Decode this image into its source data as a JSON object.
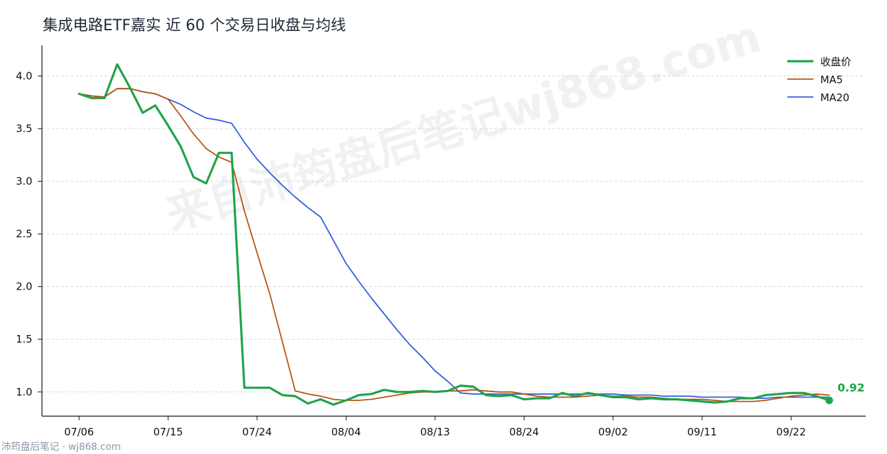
{
  "chart_data": {
    "type": "line",
    "title": "集成电路ETF嘉实 近 60 个交易日收盘与均线",
    "xlabel": "",
    "ylabel": "",
    "ylim": [
      0.77,
      4.29
    ],
    "yticks": [
      "1.0",
      "1.5",
      "2.0",
      "2.5",
      "3.0",
      "3.5",
      "4.0"
    ],
    "xticks": [
      "07/06",
      "07/15",
      "07/24",
      "08/04",
      "08/13",
      "08/24",
      "09/02",
      "09/11",
      "09/22"
    ],
    "xtick_index": [
      0,
      7,
      14,
      21,
      28,
      35,
      42,
      49,
      56
    ],
    "grid": "horizontal dashed",
    "legend": "top-right",
    "series": [
      {
        "name": "收盘价",
        "color": "#1fa34a",
        "values": [
          3.83,
          3.79,
          3.79,
          4.11,
          3.89,
          3.65,
          3.72,
          3.53,
          3.33,
          3.04,
          2.98,
          3.27,
          3.27,
          1.04,
          1.04,
          1.04,
          0.97,
          0.96,
          0.89,
          0.93,
          0.88,
          0.92,
          0.97,
          0.98,
          1.02,
          1.0,
          1.0,
          1.01,
          1.0,
          1.01,
          1.06,
          1.05,
          0.97,
          0.96,
          0.97,
          0.93,
          0.94,
          0.94,
          0.99,
          0.96,
          0.99,
          0.97,
          0.95,
          0.95,
          0.93,
          0.94,
          0.93,
          0.93,
          0.92,
          0.91,
          0.9,
          0.91,
          0.94,
          0.94,
          0.97,
          0.98,
          0.99,
          0.99,
          0.96,
          0.92
        ]
      },
      {
        "name": "MA5",
        "color": "#b8520f",
        "values": [
          3.83,
          3.81,
          3.8,
          3.88,
          3.88,
          3.85,
          3.83,
          3.78,
          3.62,
          3.45,
          3.31,
          3.23,
          3.18,
          2.72,
          2.32,
          1.93,
          1.47,
          1.01,
          0.98,
          0.96,
          0.93,
          0.92,
          0.92,
          0.93,
          0.95,
          0.97,
          0.99,
          1.0,
          1.0,
          1.01,
          1.01,
          1.02,
          1.01,
          1.0,
          1.0,
          0.98,
          0.96,
          0.95,
          0.95,
          0.95,
          0.96,
          0.97,
          0.96,
          0.96,
          0.95,
          0.95,
          0.94,
          0.93,
          0.93,
          0.93,
          0.92,
          0.91,
          0.91,
          0.91,
          0.92,
          0.94,
          0.96,
          0.97,
          0.98,
          0.97
        ]
      },
      {
        "name": "MA20",
        "color": "#2f5fdc",
        "values": [
          3.83,
          3.81,
          3.8,
          3.88,
          3.88,
          3.85,
          3.83,
          3.78,
          3.73,
          3.66,
          3.6,
          3.58,
          3.55,
          3.37,
          3.21,
          3.08,
          2.96,
          2.85,
          2.75,
          2.66,
          2.44,
          2.22,
          2.05,
          1.89,
          1.74,
          1.59,
          1.45,
          1.33,
          1.2,
          1.1,
          0.99,
          0.98,
          0.98,
          0.98,
          0.98,
          0.98,
          0.98,
          0.98,
          0.98,
          0.98,
          0.98,
          0.98,
          0.98,
          0.97,
          0.97,
          0.97,
          0.96,
          0.96,
          0.96,
          0.95,
          0.95,
          0.95,
          0.95,
          0.94,
          0.94,
          0.95,
          0.95,
          0.95,
          0.95,
          0.95
        ]
      }
    ],
    "last_value_label": "0.92"
  },
  "watermark": "来自沛筠盘后笔记wj868.com",
  "footer": "沛筠盘后笔记 · wj868.com"
}
